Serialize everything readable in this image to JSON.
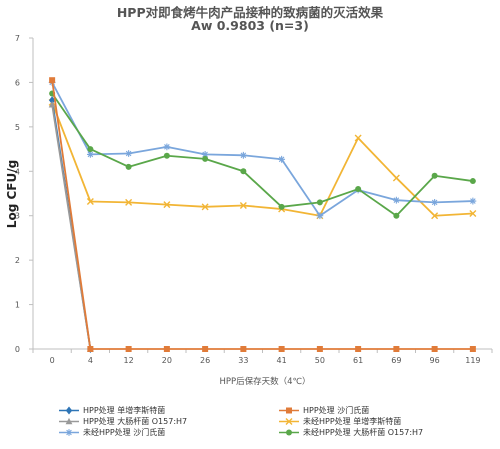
{
  "chart_data": {
    "type": "line",
    "title": "HPP对即食烤牛肉产品接种的致病菌的灭活效果",
    "subtitle": "Aw 0.9803 (n=3)",
    "xlabel": "HPP后保存天数（4℃）",
    "ylabel": "Log CFU/g",
    "ylim": [
      0,
      7
    ],
    "yticks": [
      0,
      1,
      2,
      3,
      4,
      5,
      6,
      7
    ],
    "categories": [
      "0",
      "4",
      "12",
      "20",
      "26",
      "33",
      "41",
      "50",
      "61",
      "69",
      "96",
      "119"
    ],
    "grid": false,
    "legend_position": "bottom",
    "series": [
      {
        "name": "HPP处理 单增李斯特菌",
        "color": "#2e75b6",
        "marker": "diamond",
        "values": [
          5.6,
          0,
          null,
          null,
          null,
          null,
          null,
          null,
          null,
          null,
          null,
          null
        ]
      },
      {
        "name": "HPP处理 沙门氏菌",
        "color": "#e07b39",
        "marker": "square",
        "values": [
          6.05,
          0,
          0,
          0,
          0,
          0,
          0,
          0,
          0,
          0,
          0,
          0
        ]
      },
      {
        "name": "HPP处理 大肠杆菌 O157:H7",
        "color": "#999999",
        "marker": "triangle",
        "values": [
          5.5,
          0,
          null,
          null,
          null,
          null,
          null,
          null,
          null,
          null,
          null,
          null
        ]
      },
      {
        "name": "未经HPP处理 单增李斯特菌",
        "color": "#f2b535",
        "marker": "x",
        "values": [
          5.55,
          3.32,
          3.3,
          3.25,
          3.2,
          3.23,
          3.15,
          3.0,
          4.75,
          3.85,
          3.0,
          3.05
        ]
      },
      {
        "name": "未经HPP处理 沙门氏菌",
        "color": "#7aa6dc",
        "marker": "star",
        "values": [
          6.0,
          4.38,
          4.4,
          4.55,
          4.38,
          4.36,
          4.27,
          3.0,
          3.58,
          3.35,
          3.3,
          3.33
        ]
      },
      {
        "name": "未经HPP处理 大肠杆菌 O157:H7",
        "color": "#5aa74a",
        "marker": "circle",
        "values": [
          5.75,
          4.5,
          4.1,
          4.35,
          4.28,
          4.0,
          3.2,
          3.3,
          3.6,
          3.0,
          3.9,
          3.78
        ]
      }
    ]
  }
}
